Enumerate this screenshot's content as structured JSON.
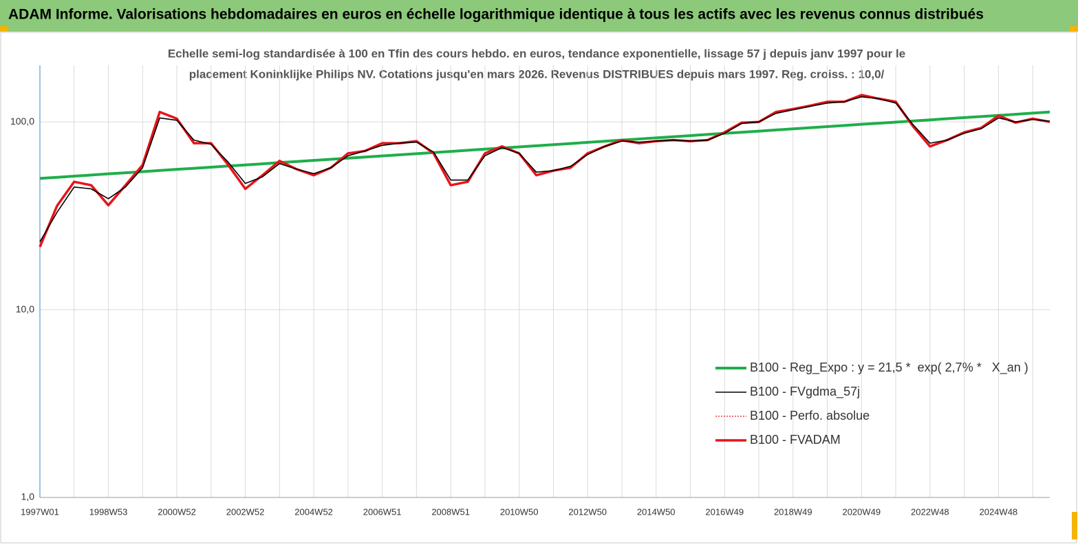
{
  "chart_data": {
    "type": "line",
    "title": "ADAM Informe. Valorisations hebdomadaires en euros en échelle logarithmique identique à tous les actifs avec les revenus connus distribués",
    "subtitle": [
      "Echelle semi-log standardisée à 100 en Tfin des cours hebdo. en euros, tendance exponentielle, lissage 57 j depuis janv 1997 pour le",
      "placement Koninklijke Philips NV. Cotations jusqu'en mars 2026. Revenus DISTRIBUES  depuis mars 1997. Reg. croiss. : 10,0/"
    ],
    "categories": [
      "1997W01",
      null,
      null,
      null,
      "1998W53",
      null,
      null,
      null,
      "2000W52",
      null,
      null,
      null,
      "2002W52",
      null,
      null,
      null,
      "2004W52",
      null,
      null,
      null,
      "2006W51",
      null,
      null,
      null,
      "2008W51",
      null,
      null,
      null,
      "2010W50",
      null,
      null,
      null,
      "2012W50",
      null,
      null,
      null,
      "2014W50",
      null,
      null,
      null,
      "2016W49",
      null,
      null,
      null,
      "2018W49",
      null,
      null,
      null,
      "2020W49",
      null,
      null,
      null,
      "2022W48",
      null,
      null,
      null,
      "2024W48",
      null,
      null,
      null
    ],
    "log_scale": true,
    "ylim": [
      1,
      200
    ],
    "yticks": [
      {
        "value": 1,
        "label": "1,0"
      },
      {
        "value": 10,
        "label": "10,0"
      },
      {
        "value": 100,
        "label": "100,0"
      }
    ],
    "grid": true,
    "legend": "right",
    "series": [
      {
        "name": "B100 - Reg_Expo : y = 21,5 *  exp( 2,7% *   X_an )",
        "color": "#1fae4b",
        "width": 4,
        "dash": null,
        "values": [
          50.0,
          50.7,
          51.4,
          52.1,
          52.9,
          53.6,
          54.3,
          55.1,
          55.9,
          56.6,
          57.4,
          58.2,
          59.0,
          59.8,
          60.7,
          61.5,
          62.4,
          63.2,
          64.1,
          65.0,
          65.9,
          66.8,
          67.7,
          68.7,
          69.6,
          70.6,
          71.6,
          72.6,
          73.6,
          74.6,
          75.7,
          76.7,
          77.8,
          78.9,
          80.0,
          81.1,
          82.2,
          83.4,
          84.5,
          85.7,
          86.9,
          88.1,
          89.3,
          90.6,
          91.8,
          93.1,
          94.4,
          95.7,
          97.1,
          98.4,
          99.7,
          101.1,
          102.5,
          104.0,
          105.4,
          106.8,
          108.3,
          109.8,
          111.4,
          112.9
        ]
      },
      {
        "name": "B100 - FVADAM",
        "color": "#e8141b",
        "width": 3.5,
        "dash": null,
        "values": [
          21.6,
          35.7,
          48,
          46,
          36,
          46,
          59,
          113,
          104,
          77,
          77,
          59,
          44,
          52,
          62,
          56,
          52,
          57,
          68,
          70,
          77,
          77,
          79,
          68,
          46,
          48,
          68,
          74,
          68,
          52,
          55,
          57,
          68,
          74,
          80,
          77,
          79,
          80,
          79,
          80,
          88,
          99,
          100,
          113,
          117,
          122,
          128,
          128,
          139,
          133,
          128,
          95,
          74,
          80,
          88,
          93,
          108,
          99,
          104,
          100
        ]
      },
      {
        "name": "B100 - Perfo. absolue",
        "color": "#e8141b",
        "width": 1.2,
        "dash": "2,2",
        "values": [
          21.6,
          35.7,
          48,
          46,
          36,
          46,
          59,
          113,
          104,
          77,
          77,
          59,
          44,
          52,
          62,
          56,
          52,
          57,
          68,
          70,
          77,
          77,
          79,
          68,
          46,
          48,
          68,
          74,
          68,
          52,
          55,
          57,
          68,
          74,
          80,
          77,
          79,
          80,
          79,
          80,
          88,
          99,
          100,
          113,
          117,
          122,
          128,
          128,
          139,
          133,
          128,
          95,
          74,
          80,
          88,
          93,
          108,
          99,
          104,
          100
        ]
      },
      {
        "name": "B100 - FVgdma_57j",
        "color": "#000000",
        "width": 1.6,
        "dash": null,
        "values": [
          23,
          33,
          45,
          44,
          39,
          45,
          57,
          105,
          102,
          80,
          76,
          61,
          47,
          51,
          60,
          56,
          53,
          57,
          66,
          70,
          75,
          77,
          78,
          69,
          49,
          49,
          66,
          73,
          68,
          54,
          55,
          58,
          67,
          74,
          79,
          78,
          79,
          80,
          79,
          80,
          87,
          98,
          100,
          111,
          116,
          121,
          126,
          128,
          136,
          133,
          126,
          97,
          77,
          80,
          87,
          92,
          105,
          100,
          103,
          101
        ]
      }
    ]
  }
}
